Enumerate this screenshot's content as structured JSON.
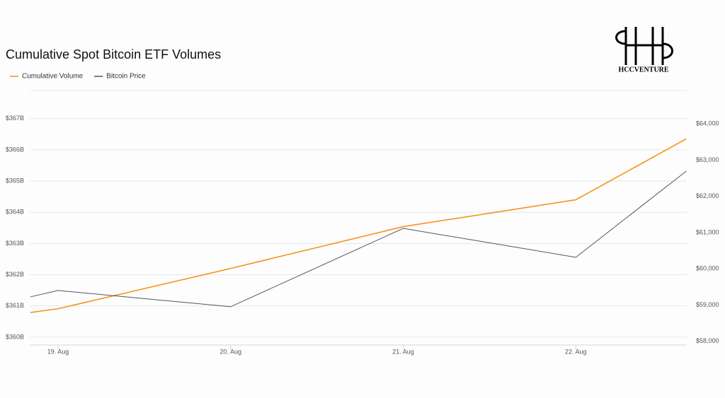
{
  "chart_data": {
    "type": "line",
    "title": "Cumulative Spot Bitcoin ETF Volumes",
    "logo": "HCCVENTURE",
    "x": [
      -0.16,
      0,
      1,
      2,
      3,
      3.64
    ],
    "xlim": [
      -0.164,
      3.643
    ],
    "xticks": [
      {
        "value": 0,
        "label": "19. Aug"
      },
      {
        "value": 1,
        "label": "20. Aug"
      },
      {
        "value": 2,
        "label": "21. Aug"
      },
      {
        "value": 3,
        "label": "22. Aug"
      }
    ],
    "ylim": [
      359.75,
      367.9
    ],
    "yticks": [
      {
        "value": 360,
        "label": "$360B"
      },
      {
        "value": 361,
        "label": "$361B"
      },
      {
        "value": 362,
        "label": "$362B"
      },
      {
        "value": 363,
        "label": "$363B"
      },
      {
        "value": 364,
        "label": "$364B"
      },
      {
        "value": 365,
        "label": "$365B"
      },
      {
        "value": 366,
        "label": "$366B"
      },
      {
        "value": 367,
        "label": "$367B"
      }
    ],
    "y2lim": [
      57900,
      64920
    ],
    "y2ticks": [
      {
        "value": 58000,
        "label": "$58,000"
      },
      {
        "value": 59000,
        "label": "$59,000"
      },
      {
        "value": 60000,
        "label": "$60,000"
      },
      {
        "value": 61000,
        "label": "$61,000"
      },
      {
        "value": 62000,
        "label": "$62,000"
      },
      {
        "value": 63000,
        "label": "$63,000"
      },
      {
        "value": 64000,
        "label": "$64,000"
      }
    ],
    "grid": true,
    "series": [
      {
        "name": "Cumulative Volume",
        "color": "#f7931a",
        "values": [
          360.79,
          360.91,
          362.2,
          363.54,
          364.4,
          366.35
        ]
      },
      {
        "name": "Bitcoin Price",
        "color": "#555555",
        "axis": "y2",
        "values": [
          59227,
          59403,
          58955,
          61117,
          60318,
          62695
        ]
      }
    ]
  }
}
